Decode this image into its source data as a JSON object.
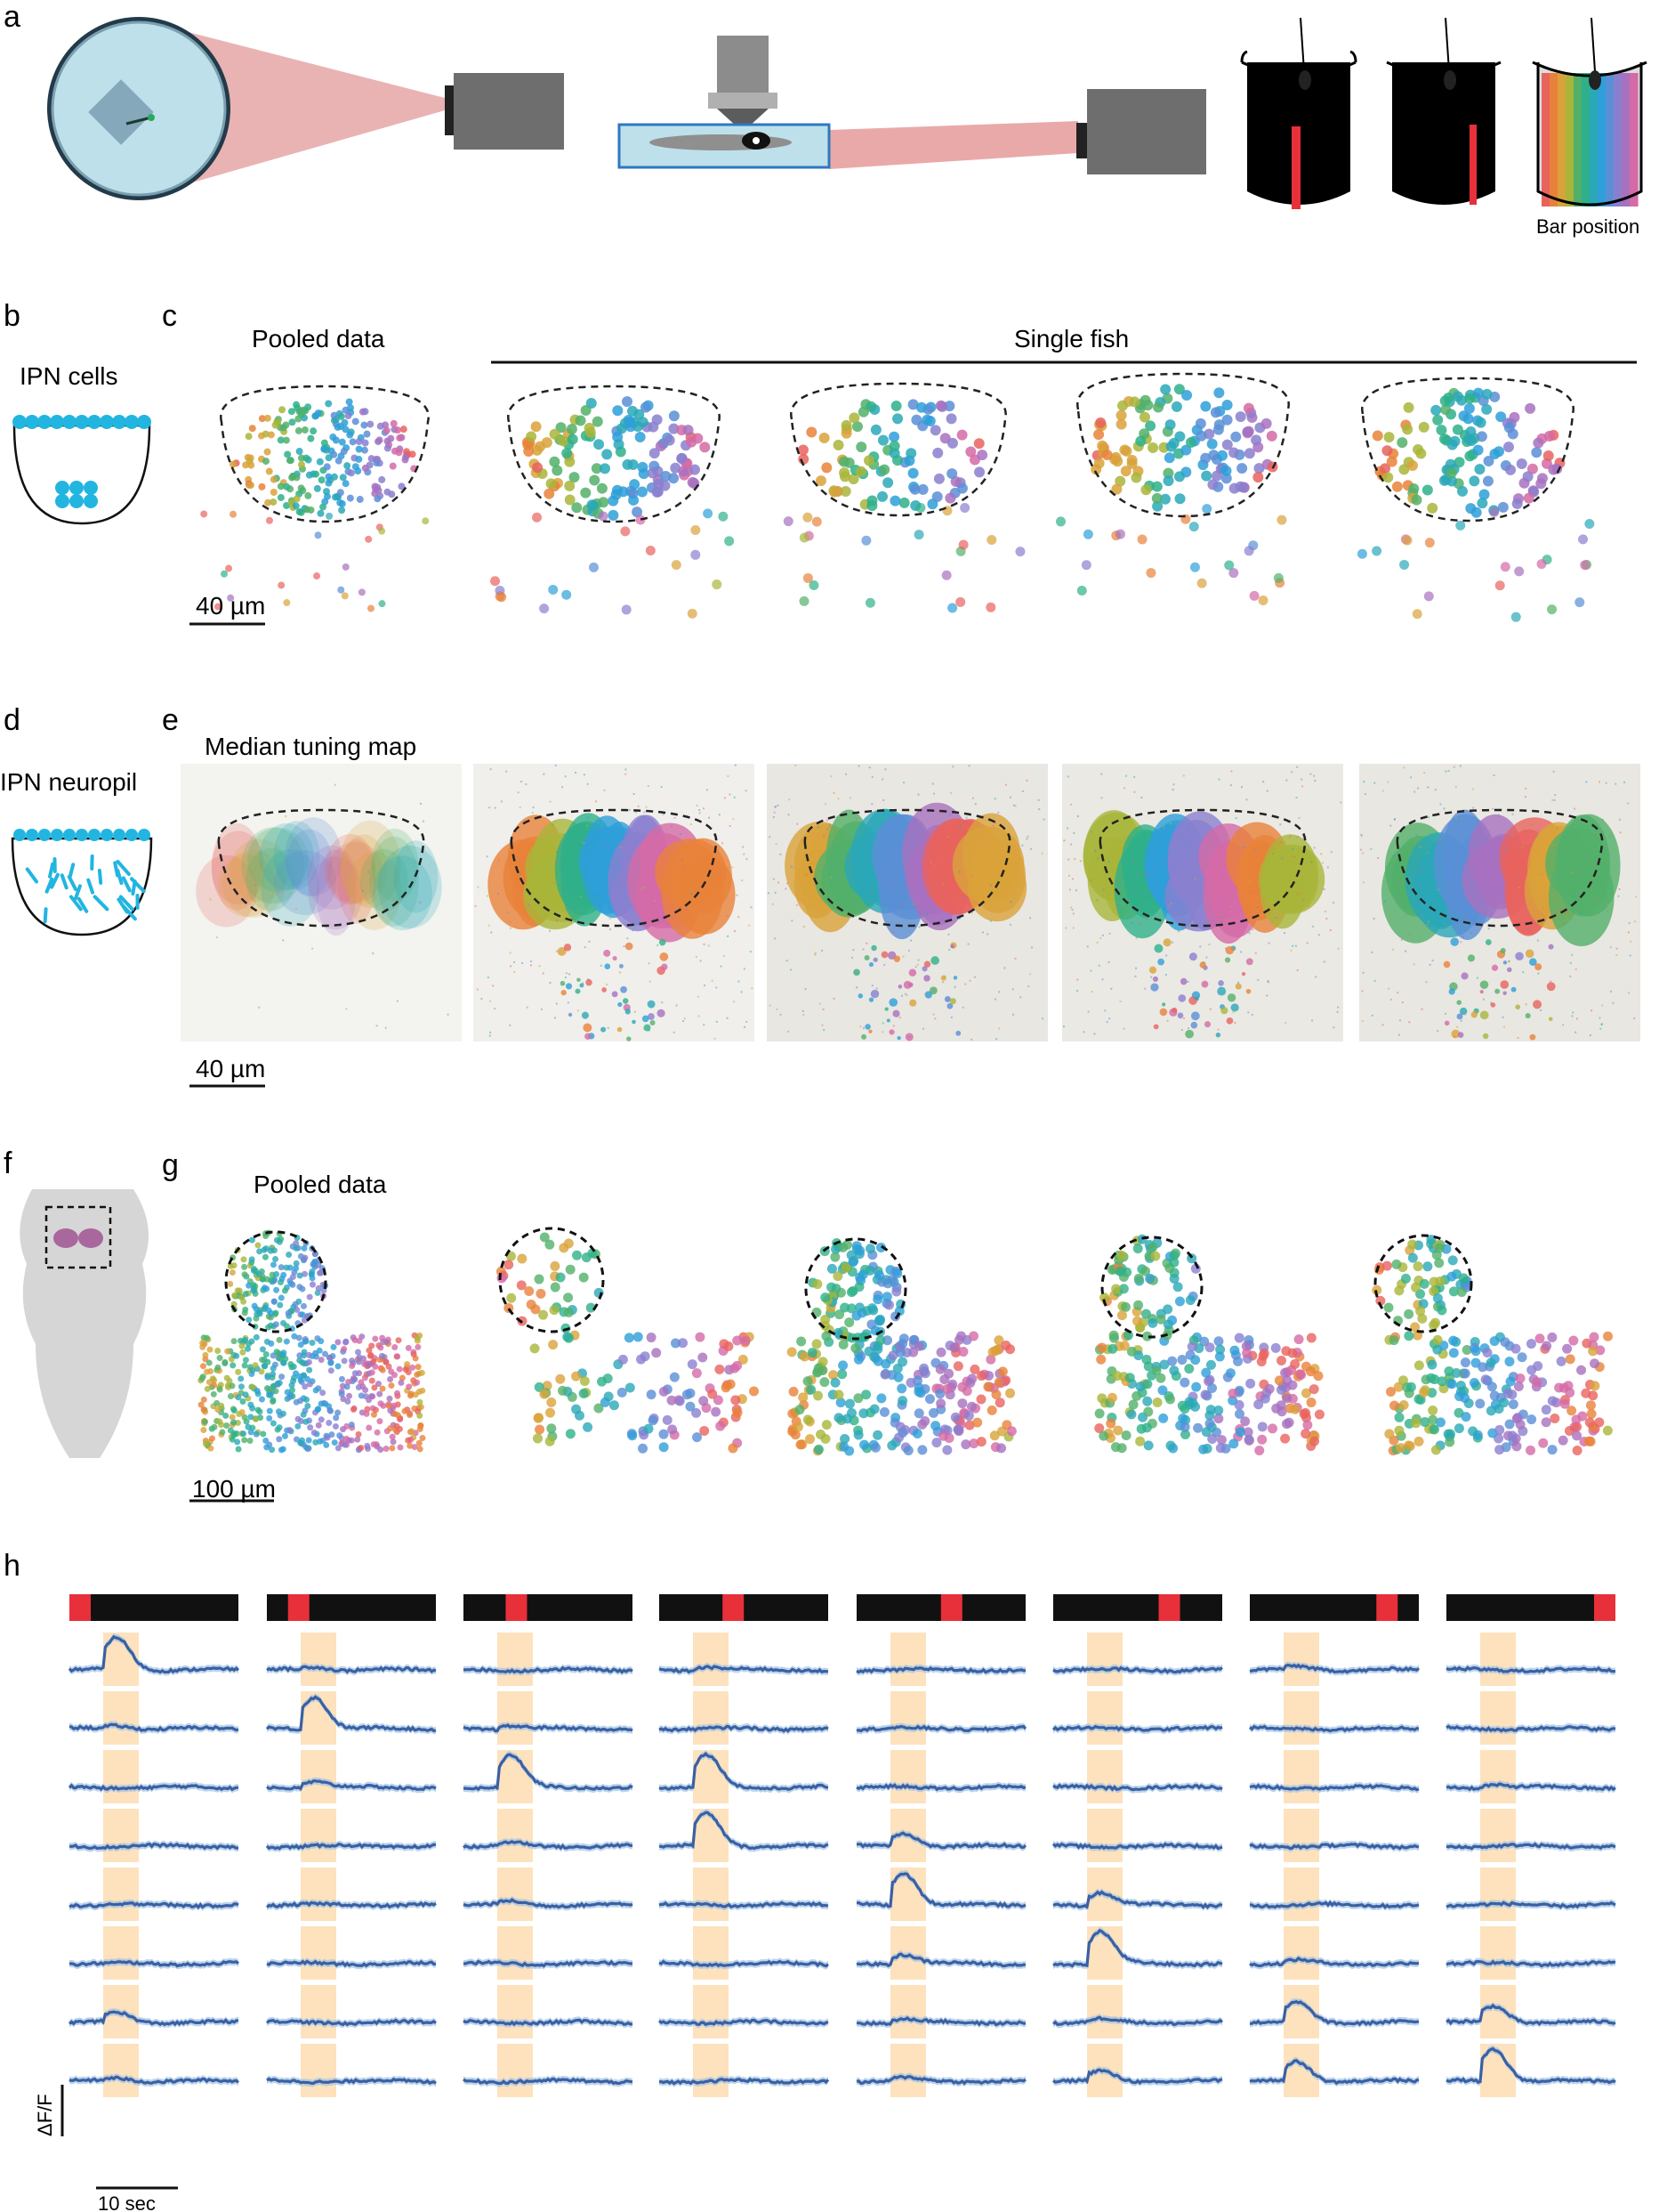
{
  "panel_labels": {
    "a": "a",
    "b": "b",
    "c": "c",
    "d": "d",
    "e": "e",
    "f": "f",
    "g": "g",
    "h": "h"
  },
  "panel_a": {
    "bar_position_label": "Bar position"
  },
  "panel_b": {
    "title": "IPN cells"
  },
  "panel_c": {
    "pooled_title": "Pooled data",
    "single_title": "Single fish",
    "scale_label": "40 µm"
  },
  "panel_d": {
    "title": "IPN neuropil"
  },
  "panel_e": {
    "title": "Median tuning map",
    "scale_label": "40 µm"
  },
  "panel_g": {
    "pooled_title": "Pooled data",
    "scale_label": "100 µm"
  },
  "panel_h": {
    "y_scale_label": "ΔF/F",
    "x_scale_label": "10 sec"
  },
  "colors": {
    "stimulus_red": "#e8303a",
    "bar_black": "#111111",
    "trace_blue": "#3a5fa3",
    "trace_shade": "#9fc3e3",
    "stim_window": "#fde2bd",
    "dish_blue": "#bde0ea",
    "ipn_cyan": "#22b5e0",
    "g_region": "#d6d6d6",
    "g_nucleus": "#a8679d"
  },
  "hue_palette": [
    "#e8635e",
    "#e8823a",
    "#d9a23a",
    "#a9b53a",
    "#52b06a",
    "#2fb08a",
    "#2aa8b8",
    "#2e9fd8",
    "#5a8fd6",
    "#8a7fcf",
    "#a871bf",
    "#d46aa6"
  ],
  "panel_h_responses": [
    [
      1.0,
      0.1,
      0.0,
      0.1,
      0.0,
      0.0,
      0.1,
      0.0
    ],
    [
      0.1,
      1.0,
      0.1,
      0.0,
      0.0,
      0.0,
      0.0,
      0.0
    ],
    [
      0.0,
      0.2,
      1.0,
      1.0,
      0.0,
      0.0,
      0.0,
      0.1
    ],
    [
      0.0,
      0.0,
      0.1,
      1.0,
      0.4,
      0.0,
      0.0,
      0.0
    ],
    [
      0.0,
      0.0,
      0.1,
      0.0,
      1.0,
      0.4,
      0.0,
      0.0
    ],
    [
      0.0,
      0.0,
      0.0,
      0.0,
      0.3,
      1.0,
      0.1,
      0.0
    ],
    [
      0.3,
      0.0,
      0.0,
      0.0,
      0.1,
      0.1,
      0.6,
      0.5
    ],
    [
      0.1,
      0.0,
      0.0,
      0.0,
      0.1,
      0.3,
      0.6,
      1.0
    ]
  ],
  "panel_h_bar_positions": [
    0.0,
    0.143,
    0.286,
    0.429,
    0.571,
    0.714,
    0.857,
    1.0
  ]
}
